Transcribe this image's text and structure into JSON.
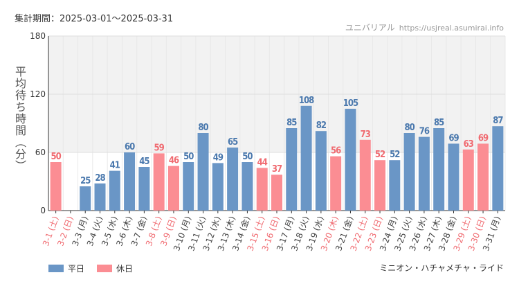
{
  "header": {
    "period": "集計期間：2025-03-01～2025-03-31",
    "credit_name": "ユニバリアル",
    "credit_site": "https://usjreal.asumirai.info"
  },
  "footer": {
    "attraction": "ミニオン・ハチャメチャ・ライド"
  },
  "legend": [
    {
      "label": "平日",
      "color": "#6a96c6"
    },
    {
      "label": "休日",
      "color": "#fb8d93"
    }
  ],
  "colors": {
    "weekday": "#6a96c6",
    "holiday": "#fb8d93",
    "weekday_label": "#444444",
    "holiday_label": "#f06a70",
    "band": "#f2f2f2",
    "grid": "#dddddd"
  },
  "chart_data": {
    "type": "bar",
    "ylabel": "平均待ち時間（分）",
    "ylim": [
      0,
      180
    ],
    "yticks": [
      0,
      60,
      120,
      180
    ],
    "categories": [
      "3-1 (土)",
      "3-2 (日)",
      "3-3 (月)",
      "3-4 (火)",
      "3-5 (水)",
      "3-6 (木)",
      "3-7 (金)",
      "3-8 (土)",
      "3-9 (日)",
      "3-10 (月)",
      "3-11 (火)",
      "3-12 (水)",
      "3-13 (木)",
      "3-14 (金)",
      "3-15 (土)",
      "3-16 (日)",
      "3-17 (月)",
      "3-18 (火)",
      "3-19 (水)",
      "3-20 (木)",
      "3-21 (金)",
      "3-22 (土)",
      "3-23 (日)",
      "3-24 (月)",
      "3-25 (火)",
      "3-26 (水)",
      "3-27 (木)",
      "3-28 (金)",
      "3-29 (土)",
      "3-30 (日)",
      "3-31 (月)"
    ],
    "values": [
      50,
      null,
      25,
      28,
      41,
      60,
      45,
      59,
      46,
      50,
      80,
      49,
      65,
      50,
      44,
      37,
      85,
      108,
      82,
      56,
      105,
      73,
      52,
      52,
      80,
      76,
      85,
      69,
      63,
      69,
      87
    ],
    "holiday": [
      true,
      true,
      false,
      false,
      false,
      false,
      false,
      true,
      true,
      false,
      false,
      false,
      false,
      false,
      true,
      true,
      false,
      false,
      false,
      true,
      false,
      true,
      true,
      false,
      false,
      false,
      false,
      false,
      true,
      true,
      false
    ],
    "grid": true,
    "legend_position": "bottom-left"
  }
}
